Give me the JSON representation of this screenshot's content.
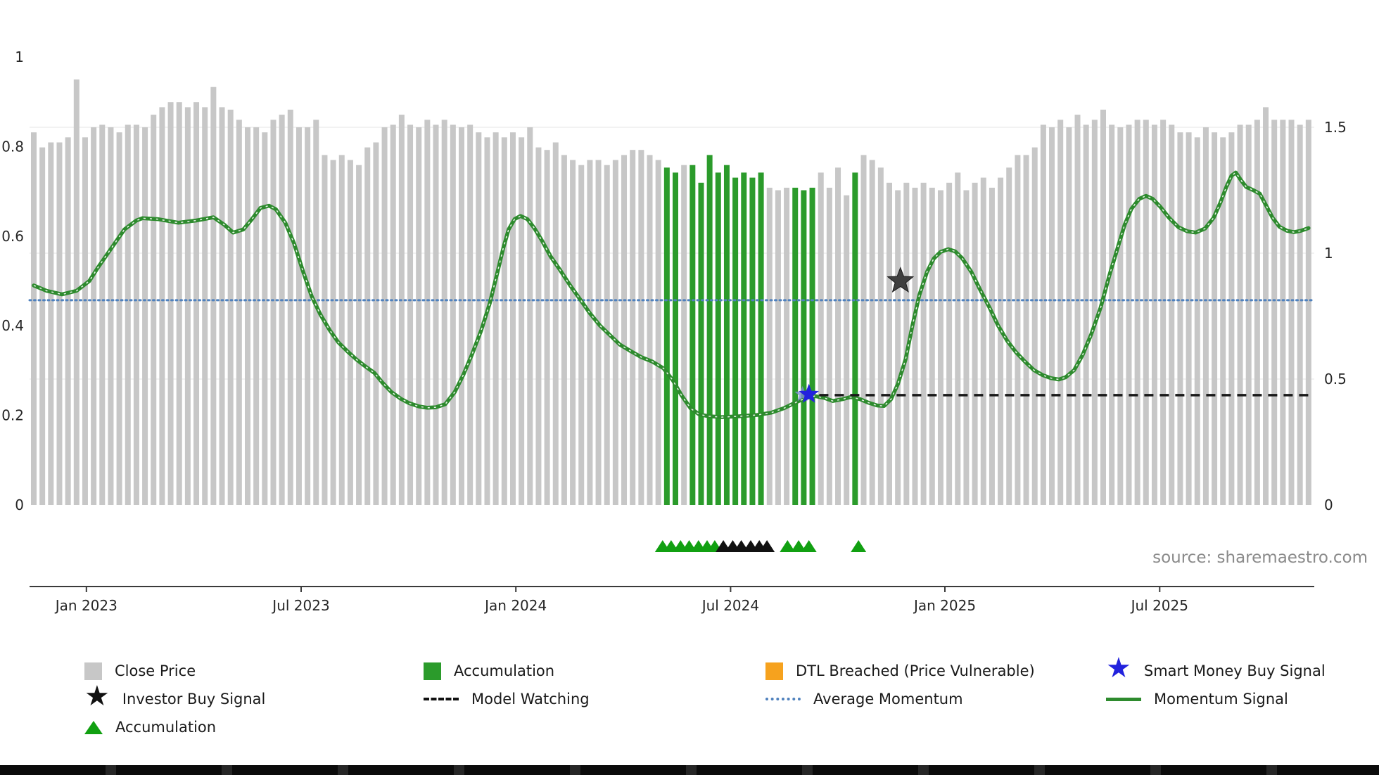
{
  "source_text": "source: sharemaestro.com",
  "colors": {
    "bar_gray": "#c7c7c7",
    "bar_green": "#2b9b2b",
    "momentum_green": "#2e8b2e",
    "avg_momentum_blue": "#4f81bd",
    "model_watching_black": "#1a1a1a",
    "smart_money_blue": "#2222dd",
    "investor_star_gray": "#3f3f3f",
    "triangle_green": "#11a011",
    "triangle_black": "#111111",
    "dtl_orange": "#f6a21e",
    "axis_text": "#262626",
    "grid": "#e9e9e9"
  },
  "legend": {
    "rows": [
      [
        {
          "label": "Close Price",
          "icon": "gray-square"
        },
        {
          "label": "Accumulation",
          "icon": "green-square"
        },
        {
          "label": "DTL Breached (Price Vulnerable)",
          "icon": "orange-square"
        },
        {
          "label": "Smart Money Buy Signal",
          "icon": "blue-star"
        }
      ],
      [
        {
          "label": "Investor Buy Signal",
          "icon": "black-star"
        },
        {
          "label": "Model Watching",
          "icon": "black-dashed-line"
        },
        {
          "label": "Average Momentum",
          "icon": "blue-dotted-line"
        },
        {
          "label": "Momentum Signal",
          "icon": "green-solid-line"
        }
      ],
      [
        {
          "label": "Accumulation",
          "icon": "green-triangle"
        }
      ]
    ]
  },
  "chart_data": {
    "type": "combo",
    "title": "",
    "x_axis": {
      "unit": "weekly bars, Nov 2022 - Nov 2025",
      "ticks": [
        {
          "t": "Jan 2023",
          "i": 6.15
        },
        {
          "t": "Jul 2023",
          "i": 31.25
        },
        {
          "t": "Jan 2024",
          "i": 56.35
        },
        {
          "t": "Jul 2024",
          "i": 81.45
        },
        {
          "t": "Jan 2025",
          "i": 106.5
        },
        {
          "t": "Jul 2025",
          "i": 131.6
        }
      ]
    },
    "left_axis": {
      "range": [
        -0.18,
        1.08
      ],
      "ticks": [
        {
          "v": 0,
          "t": "0"
        },
        {
          "v": 0.2,
          "t": "0.2"
        },
        {
          "v": 0.4,
          "t": "0.4"
        },
        {
          "v": 0.6,
          "t": "0.6"
        },
        {
          "v": 0.8,
          "t": "0.8"
        },
        {
          "v": 1,
          "t": "1"
        }
      ]
    },
    "right_axis": {
      "range": [
        -0.32,
        1.92
      ],
      "ticks": [
        {
          "v": 0,
          "t": "0"
        },
        {
          "v": 0.5,
          "t": "0.5"
        },
        {
          "v": 1,
          "t": "1"
        },
        {
          "v": 1.5,
          "t": "1.5"
        }
      ]
    },
    "close_price_bars": {
      "axis": "right",
      "values": [
        1.48,
        1.42,
        1.44,
        1.44,
        1.46,
        1.69,
        1.46,
        1.5,
        1.51,
        1.5,
        1.48,
        1.51,
        1.51,
        1.5,
        1.55,
        1.58,
        1.6,
        1.6,
        1.58,
        1.6,
        1.58,
        1.66,
        1.58,
        1.57,
        1.53,
        1.5,
        1.5,
        1.48,
        1.53,
        1.55,
        1.57,
        1.5,
        1.5,
        1.53,
        1.39,
        1.37,
        1.39,
        1.37,
        1.35,
        1.42,
        1.44,
        1.5,
        1.51,
        1.55,
        1.51,
        1.5,
        1.53,
        1.51,
        1.53,
        1.51,
        1.5,
        1.51,
        1.48,
        1.46,
        1.48,
        1.46,
        1.48,
        1.46,
        1.5,
        1.42,
        1.41,
        1.44,
        1.39,
        1.37,
        1.35,
        1.37,
        1.37,
        1.35,
        1.37,
        1.39,
        1.41,
        1.41,
        1.39,
        1.37,
        1.34,
        1.32,
        1.35,
        1.35,
        1.28,
        1.39,
        1.32,
        1.35,
        1.3,
        1.32,
        1.3,
        1.32,
        1.26,
        1.25,
        1.26,
        1.26,
        1.25,
        1.26,
        1.32,
        1.26,
        1.34,
        1.23,
        1.32,
        1.39,
        1.37,
        1.34,
        1.28,
        1.25,
        1.28,
        1.26,
        1.28,
        1.26,
        1.25,
        1.28,
        1.32,
        1.25,
        1.28,
        1.3,
        1.26,
        1.3,
        1.34,
        1.39,
        1.39,
        1.42,
        1.51,
        1.5,
        1.53,
        1.5,
        1.55,
        1.51,
        1.53,
        1.57,
        1.51,
        1.5,
        1.51,
        1.53,
        1.53,
        1.51,
        1.53,
        1.51,
        1.48,
        1.48,
        1.46,
        1.5,
        1.48,
        1.46,
        1.48,
        1.51,
        1.51,
        1.53,
        1.58,
        1.53,
        1.53,
        1.53,
        1.51,
        1.53
      ],
      "accumulation_indices": [
        74,
        75,
        77,
        78,
        79,
        80,
        81,
        82,
        83,
        84,
        85,
        89,
        90,
        91,
        96
      ]
    },
    "momentum_signal": {
      "axis": "left",
      "points": [
        [
          0,
          0.49
        ],
        [
          1.5,
          0.478
        ],
        [
          3.3,
          0.47
        ],
        [
          5,
          0.478
        ],
        [
          6.5,
          0.5
        ],
        [
          7.5,
          0.53
        ],
        [
          9.5,
          0.585
        ],
        [
          10.6,
          0.615
        ],
        [
          12,
          0.635
        ],
        [
          12.7,
          0.64
        ],
        [
          14.5,
          0.638
        ],
        [
          16.9,
          0.63
        ],
        [
          19,
          0.635
        ],
        [
          21,
          0.642
        ],
        [
          22.3,
          0.625
        ],
        [
          23.3,
          0.608
        ],
        [
          24.5,
          0.615
        ],
        [
          25.5,
          0.638
        ],
        [
          26.5,
          0.663
        ],
        [
          27.5,
          0.668
        ],
        [
          28.3,
          0.66
        ],
        [
          29.4,
          0.63
        ],
        [
          30.4,
          0.585
        ],
        [
          31.5,
          0.52
        ],
        [
          32.5,
          0.465
        ],
        [
          33.5,
          0.425
        ],
        [
          34.6,
          0.39
        ],
        [
          35.6,
          0.363
        ],
        [
          36.7,
          0.342
        ],
        [
          37.7,
          0.325
        ],
        [
          38.7,
          0.31
        ],
        [
          39.8,
          0.295
        ],
        [
          40.8,
          0.272
        ],
        [
          41.8,
          0.252
        ],
        [
          42.9,
          0.237
        ],
        [
          43.9,
          0.227
        ],
        [
          45,
          0.22
        ],
        [
          46,
          0.217
        ],
        [
          47,
          0.218
        ],
        [
          48.1,
          0.225
        ],
        [
          49.2,
          0.252
        ],
        [
          50.2,
          0.29
        ],
        [
          51.2,
          0.335
        ],
        [
          52.3,
          0.39
        ],
        [
          53.3,
          0.45
        ],
        [
          54.2,
          0.52
        ],
        [
          54.9,
          0.575
        ],
        [
          55.5,
          0.615
        ],
        [
          56.2,
          0.638
        ],
        [
          56.9,
          0.645
        ],
        [
          57.7,
          0.638
        ],
        [
          58.5,
          0.618
        ],
        [
          59.4,
          0.59
        ],
        [
          60.4,
          0.555
        ],
        [
          61.5,
          0.525
        ],
        [
          62.7,
          0.49
        ],
        [
          63.9,
          0.458
        ],
        [
          65,
          0.428
        ],
        [
          66.2,
          0.4
        ],
        [
          67.4,
          0.378
        ],
        [
          68.5,
          0.358
        ],
        [
          69.8,
          0.343
        ],
        [
          71,
          0.33
        ],
        [
          72.3,
          0.32
        ],
        [
          73.6,
          0.305
        ],
        [
          74.7,
          0.278
        ],
        [
          75.7,
          0.245
        ],
        [
          76.8,
          0.215
        ],
        [
          77.8,
          0.202
        ],
        [
          78.9,
          0.198
        ],
        [
          80.4,
          0.196
        ],
        [
          82.5,
          0.198
        ],
        [
          84.6,
          0.201
        ],
        [
          86.2,
          0.206
        ],
        [
          87.7,
          0.216
        ],
        [
          89.3,
          0.231
        ],
        [
          90.3,
          0.239
        ],
        [
          91.3,
          0.243
        ],
        [
          92.4,
          0.239
        ],
        [
          93.4,
          0.232
        ],
        [
          94.5,
          0.236
        ],
        [
          95.5,
          0.241
        ],
        [
          96.6,
          0.236
        ],
        [
          97.6,
          0.228
        ],
        [
          98.6,
          0.222
        ],
        [
          99.4,
          0.221
        ],
        [
          100.2,
          0.236
        ],
        [
          101,
          0.27
        ],
        [
          101.9,
          0.325
        ],
        [
          102.7,
          0.4
        ],
        [
          103.5,
          0.468
        ],
        [
          104.4,
          0.52
        ],
        [
          105.2,
          0.55
        ],
        [
          106,
          0.565
        ],
        [
          106.9,
          0.571
        ],
        [
          107.7,
          0.566
        ],
        [
          108.5,
          0.551
        ],
        [
          109.6,
          0.52
        ],
        [
          110.6,
          0.481
        ],
        [
          111.7,
          0.441
        ],
        [
          112.7,
          0.401
        ],
        [
          113.8,
          0.366
        ],
        [
          114.8,
          0.341
        ],
        [
          115.8,
          0.321
        ],
        [
          116.9,
          0.301
        ],
        [
          117.9,
          0.29
        ],
        [
          118.9,
          0.283
        ],
        [
          119.8,
          0.28
        ],
        [
          120.6,
          0.285
        ],
        [
          121.6,
          0.301
        ],
        [
          122.6,
          0.335
        ],
        [
          123.6,
          0.381
        ],
        [
          124.7,
          0.441
        ],
        [
          125.7,
          0.511
        ],
        [
          126.8,
          0.581
        ],
        [
          127.5,
          0.625
        ],
        [
          128.3,
          0.661
        ],
        [
          129.2,
          0.683
        ],
        [
          130,
          0.69
        ],
        [
          130.8,
          0.683
        ],
        [
          131.7,
          0.665
        ],
        [
          132.7,
          0.641
        ],
        [
          133.8,
          0.62
        ],
        [
          134.8,
          0.611
        ],
        [
          135.8,
          0.608
        ],
        [
          136.9,
          0.617
        ],
        [
          137.9,
          0.641
        ],
        [
          138.7,
          0.675
        ],
        [
          139.4,
          0.71
        ],
        [
          140,
          0.735
        ],
        [
          140.5,
          0.742
        ],
        [
          141.1,
          0.725
        ],
        [
          141.7,
          0.71
        ],
        [
          142.5,
          0.703
        ],
        [
          143.3,
          0.695
        ],
        [
          144,
          0.67
        ],
        [
          144.8,
          0.641
        ],
        [
          145.6,
          0.621
        ],
        [
          146.5,
          0.612
        ],
        [
          147.3,
          0.609
        ],
        [
          148.1,
          0.612
        ],
        [
          149,
          0.618
        ]
      ]
    },
    "average_momentum": {
      "axis": "left",
      "value": 0.457,
      "style": "dotted",
      "full_width": true
    },
    "model_watching": {
      "axis": "left",
      "value": 0.245,
      "start_index": 90,
      "style": "dashed"
    },
    "markers": {
      "smart_money_buy_signal": {
        "index": 90.6,
        "value": 0.247,
        "shape": "star"
      },
      "investor_buy_signal": {
        "index": 101.3,
        "value": 0.5,
        "shape": "star"
      },
      "accumulation_triangles": [
        73.5,
        74.5,
        75.6,
        76.6,
        77.7,
        78.7,
        79.6,
        88.1,
        89.4,
        90.6,
        96.4
      ],
      "black_triangles": [
        80.6,
        81.7,
        82.7,
        83.8,
        84.8,
        85.7
      ]
    }
  }
}
